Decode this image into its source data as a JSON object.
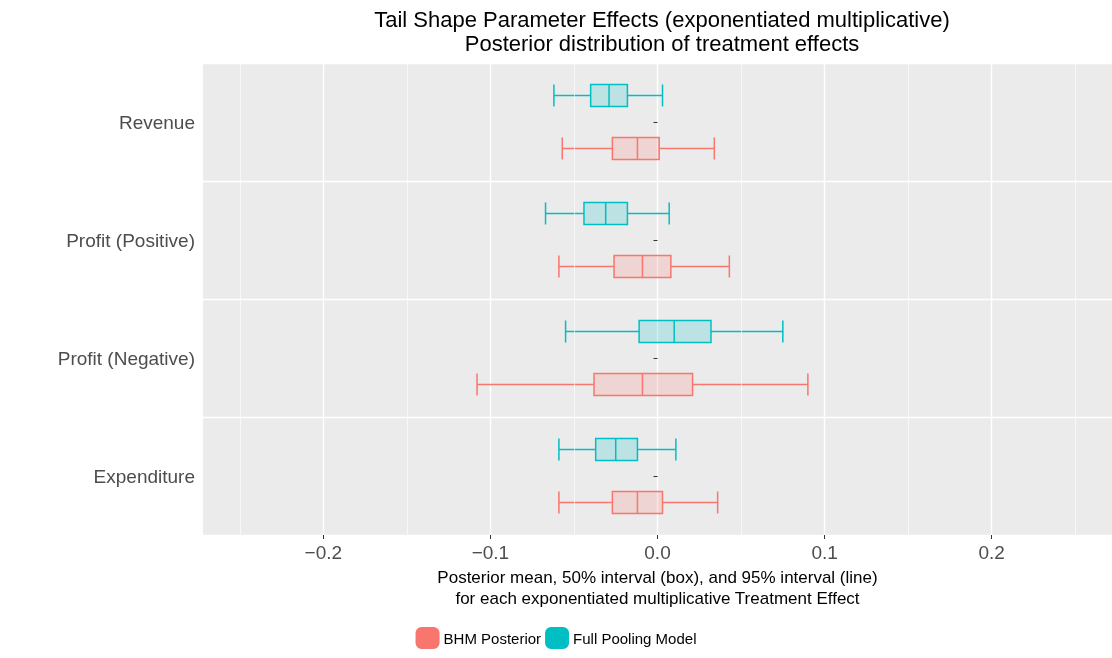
{
  "chart_data": {
    "type": "box",
    "orientation": "horizontal",
    "title": "Tail Shape Parameter Effects (exponentiated multiplicative)",
    "subtitle": "Posterior distribution of treatment effects",
    "xlabel": "Posterior mean, 50% interval (box), and 95% interval (line)\nfor each exponentiated multiplicative Treatment Effect",
    "categories": [
      "Revenue",
      "Profit (Positive)",
      "Profit (Negative)",
      "Expenditure"
    ],
    "series": [
      {
        "name": "BHM Posterior",
        "color": "#f8766d",
        "boxes": [
          {
            "low": -0.057,
            "q1": -0.027,
            "median": -0.012,
            "q3": 0.001,
            "high": 0.034
          },
          {
            "low": -0.059,
            "q1": -0.026,
            "median": -0.009,
            "q3": 0.008,
            "high": 0.043
          },
          {
            "low": -0.108,
            "q1": -0.038,
            "median": -0.009,
            "q3": 0.021,
            "high": 0.09
          },
          {
            "low": -0.059,
            "q1": -0.027,
            "median": -0.012,
            "q3": 0.003,
            "high": 0.036
          }
        ]
      },
      {
        "name": "Full Pooling Model",
        "color": "#00bfc4",
        "boxes": [
          {
            "low": -0.062,
            "q1": -0.04,
            "median": -0.029,
            "q3": -0.018,
            "high": 0.003
          },
          {
            "low": -0.067,
            "q1": -0.044,
            "median": -0.031,
            "q3": -0.018,
            "high": 0.007
          },
          {
            "low": -0.055,
            "q1": -0.011,
            "median": 0.01,
            "q3": 0.032,
            "high": 0.075
          },
          {
            "low": -0.059,
            "q1": -0.037,
            "median": -0.025,
            "q3": -0.012,
            "high": 0.011
          }
        ]
      }
    ],
    "xlim": [
      -0.272,
      0.272
    ],
    "xticks": [
      {
        "value": -0.2,
        "label": "−0.2"
      },
      {
        "value": -0.1,
        "label": "−0.1"
      },
      {
        "value": 0,
        "label": "0.0"
      },
      {
        "value": 0.1,
        "label": "0.1"
      },
      {
        "value": 0.2,
        "label": "0.2"
      }
    ],
    "grid": true,
    "legend": "bottom"
  }
}
